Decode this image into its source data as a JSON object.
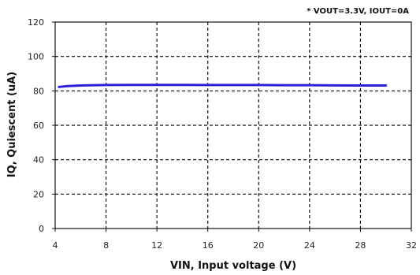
{
  "chart_data": {
    "type": "line",
    "title": "",
    "annotation": "* VOUT=3.3V, IOUT=0A",
    "xlabel": "VIN, Input voltage (V)",
    "ylabel": "IQ, Quiescent (uA)",
    "xlim": [
      4,
      32
    ],
    "ylim": [
      0,
      120
    ],
    "xticks": [
      "4",
      "8",
      "12",
      "16",
      "20",
      "24",
      "28",
      "32"
    ],
    "yticks": [
      "0",
      "20",
      "40",
      "60",
      "80",
      "100",
      "120"
    ],
    "grid": true,
    "series": [
      {
        "color": "#2b22d6",
        "x": [
          4.3,
          5,
          6,
          7,
          8,
          10,
          12,
          14,
          16,
          18,
          20,
          22,
          24,
          26,
          28,
          30
        ],
        "y": [
          82.3,
          82.8,
          83.1,
          83.3,
          83.4,
          83.5,
          83.5,
          83.5,
          83.4,
          83.4,
          83.4,
          83.3,
          83.3,
          83.2,
          83.1,
          83.1
        ]
      }
    ]
  }
}
